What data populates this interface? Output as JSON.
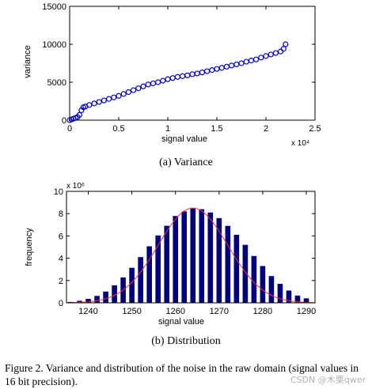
{
  "chart_data": [
    {
      "type": "scatter",
      "title": "",
      "xlabel": "signal value",
      "ylabel": "variance",
      "x_multiplier": "x 10⁴",
      "xlim": [
        0,
        2.5
      ],
      "ylim": [
        0,
        15000
      ],
      "x_ticks": [
        "0",
        "0.5",
        "1",
        "1.5",
        "2",
        "2.5"
      ],
      "y_ticks": [
        "0",
        "5000",
        "10000",
        "15000"
      ],
      "marker_color": "#0000cc",
      "x": [
        0.0,
        0.02,
        0.04,
        0.06,
        0.08,
        0.1,
        0.12,
        0.14,
        0.16,
        0.2,
        0.25,
        0.3,
        0.35,
        0.4,
        0.45,
        0.5,
        0.55,
        0.6,
        0.65,
        0.7,
        0.75,
        0.8,
        0.85,
        0.9,
        0.95,
        1.0,
        1.05,
        1.1,
        1.15,
        1.2,
        1.25,
        1.3,
        1.35,
        1.4,
        1.45,
        1.5,
        1.55,
        1.6,
        1.65,
        1.7,
        1.75,
        1.8,
        1.85,
        1.9,
        1.95,
        2.0,
        2.05,
        2.1,
        2.15,
        2.18,
        2.2
      ],
      "y": [
        0,
        100,
        200,
        300,
        400,
        700,
        1300,
        1700,
        1800,
        2000,
        2200,
        2400,
        2600,
        2800,
        3000,
        3200,
        3450,
        3700,
        3950,
        4200,
        4450,
        4700,
        4850,
        5000,
        5200,
        5400,
        5550,
        5700,
        5800,
        5900,
        6050,
        6150,
        6300,
        6450,
        6600,
        6750,
        6900,
        7050,
        7200,
        7350,
        7500,
        7700,
        7850,
        8000,
        8250,
        8450,
        8650,
        8850,
        9050,
        9400,
        10000
      ]
    },
    {
      "type": "bar",
      "title": "",
      "xlabel": "signal value",
      "ylabel": "frequency",
      "y_multiplier": "x 10⁶",
      "xlim": [
        1235,
        1292
      ],
      "ylim": [
        0,
        10
      ],
      "x_ticks": [
        "1240",
        "1250",
        "1260",
        "1270",
        "1280",
        "1290"
      ],
      "y_ticks": [
        "0",
        "2",
        "4",
        "6",
        "8",
        "10"
      ],
      "bar_color": "#00007f",
      "curve_color": "#ff3030",
      "mean": 1264,
      "sigma": 8,
      "peak": 8.5,
      "x": [
        1236,
        1238,
        1240,
        1242,
        1244,
        1246,
        1248,
        1250,
        1252,
        1254,
        1256,
        1258,
        1260,
        1262,
        1264,
        1266,
        1268,
        1270,
        1272,
        1274,
        1276,
        1278,
        1280,
        1282,
        1284,
        1286,
        1288,
        1290
      ],
      "values": [
        0.08,
        0.18,
        0.35,
        0.62,
        1.01,
        1.57,
        2.28,
        3.14,
        4.1,
        5.07,
        6.04,
        6.91,
        7.79,
        8.2,
        8.5,
        8.4,
        8.1,
        7.6,
        6.9,
        6.1,
        5.2,
        4.2,
        3.3,
        2.4,
        1.7,
        1.1,
        0.65,
        0.4
      ]
    }
  ],
  "captions": {
    "a": "(a) Variance",
    "b": "(b) Distribution",
    "figure": "Figure 2.   Variance and distribution of the noise in the raw domain (signal values in 16 bit precision)."
  },
  "watermark": "CSDN @木栗qwer"
}
